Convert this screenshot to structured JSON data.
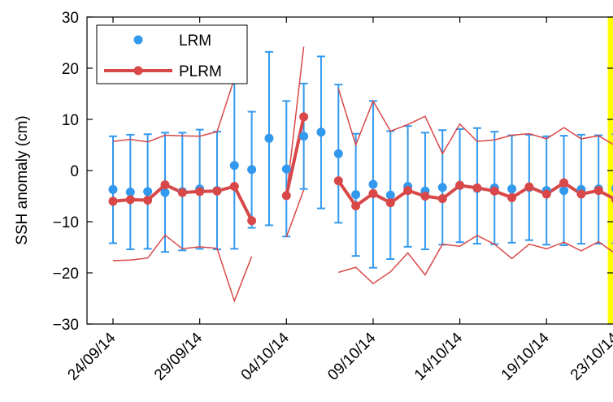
{
  "chart_data": {
    "type": "line",
    "ylabel": "SSH anomaly (cm)",
    "ylim": [
      -30,
      30
    ],
    "yticks": [
      -30,
      -20,
      -10,
      0,
      10,
      20,
      30
    ],
    "ytick_labels": [
      "−30",
      "−20",
      "−10",
      "0",
      "10",
      "20",
      "30"
    ],
    "xticks": [
      {
        "day": 0,
        "label": "24/09/14"
      },
      {
        "day": 5,
        "label": "29/09/14"
      },
      {
        "day": 10,
        "label": "04/10/14"
      },
      {
        "day": 15,
        "label": "09/10/14"
      },
      {
        "day": 20,
        "label": "14/10/14"
      },
      {
        "day": 25,
        "label": "19/10/14"
      },
      {
        "day": 29,
        "label": "23/10/14"
      }
    ],
    "x_dates": [
      "24/09/14",
      "25/09/14",
      "26/09/14",
      "27/09/14",
      "28/09/14",
      "29/09/14",
      "30/09/14",
      "01/10/14",
      "02/10/14",
      "03/10/14",
      "04/10/14",
      "05/10/14",
      "06/10/14",
      "07/10/14",
      "08/10/14",
      "09/10/14",
      "10/10/14",
      "11/10/14",
      "12/10/14",
      "13/10/14",
      "14/10/14",
      "15/10/14",
      "16/10/14",
      "17/10/14",
      "18/10/14",
      "19/10/14",
      "20/10/14",
      "21/10/14",
      "22/10/14",
      "23/10/14"
    ],
    "highlight_region": {
      "from_date": "23/10/14",
      "color": "#ffff00"
    },
    "legend": {
      "position": "top-left",
      "entries": [
        "LRM",
        "PLRM"
      ]
    },
    "series": [
      {
        "name": "LRM",
        "style": "points with error bars",
        "color": "#3399ee",
        "values": [
          -3.7,
          -4.2,
          -4.1,
          -4.3,
          -4.1,
          -3.6,
          -3.9,
          1.0,
          0.2,
          6.3,
          0.3,
          6.7,
          7.5,
          3.3,
          -4.7,
          -2.7,
          -4.8,
          -3.1,
          -4.0,
          -3.3,
          -2.9,
          -3.5,
          -3.4,
          -3.6,
          -3.3,
          -3.9,
          -3.9,
          -3.7,
          -3.6,
          -3.5
        ],
        "upper": [
          6.7,
          7.0,
          7.1,
          7.4,
          7.4,
          8.0,
          7.6,
          17.2,
          11.5,
          23.2,
          13.6,
          17.0,
          22.3,
          16.8,
          7.2,
          13.6,
          7.7,
          8.7,
          7.4,
          7.9,
          8.1,
          8.3,
          7.6,
          6.9,
          7.0,
          6.7,
          6.8,
          7.0,
          6.9,
          7.1
        ],
        "lower": [
          -14.2,
          -15.4,
          -15.3,
          -15.9,
          -15.6,
          -15.3,
          -15.4,
          -15.3,
          -11.2,
          -10.7,
          -12.9,
          -3.6,
          -7.4,
          -10.2,
          -16.7,
          -19.0,
          -17.3,
          -14.9,
          -15.4,
          -14.5,
          -14.0,
          -14.3,
          -14.4,
          -14.1,
          -13.6,
          -14.5,
          -14.6,
          -14.3,
          -14.3,
          -14.2
        ]
      },
      {
        "name": "PLRM",
        "style": "thick line with markers and thin envelope lines",
        "color": "#d94848",
        "values": [
          -6.0,
          -5.7,
          -5.8,
          -2.8,
          -4.3,
          -4.1,
          -4.0,
          -3.1,
          -9.8,
          null,
          -4.9,
          10.5,
          null,
          -2.0,
          -6.9,
          -4.5,
          -6.3,
          -3.9,
          -5.0,
          -5.5,
          -2.9,
          -3.4,
          -4.0,
          -5.3,
          -3.2,
          -4.6,
          -2.4,
          -4.6,
          -3.9,
          -5.7
        ],
        "upper": [
          5.7,
          6.1,
          5.6,
          6.9,
          6.8,
          6.7,
          7.6,
          18.0,
          null,
          null,
          -4.9,
          24.2,
          null,
          16.0,
          5.0,
          13.6,
          7.7,
          9.0,
          10.6,
          3.3,
          9.1,
          5.7,
          6.0,
          6.9,
          7.2,
          6.2,
          8.4,
          6.2,
          6.8,
          4.8
        ],
        "lower": [
          -17.6,
          -17.5,
          -17.1,
          -12.6,
          -15.3,
          -14.9,
          -15.2,
          -25.5,
          -16.8,
          null,
          -13.0,
          -3.8,
          null,
          -19.9,
          -18.9,
          -22.1,
          -19.8,
          -16.1,
          -20.4,
          -14.4,
          -14.8,
          -12.7,
          -14.4,
          -17.2,
          -14.4,
          -15.3,
          -14.0,
          -15.7,
          -13.9,
          -16.3
        ]
      }
    ]
  }
}
